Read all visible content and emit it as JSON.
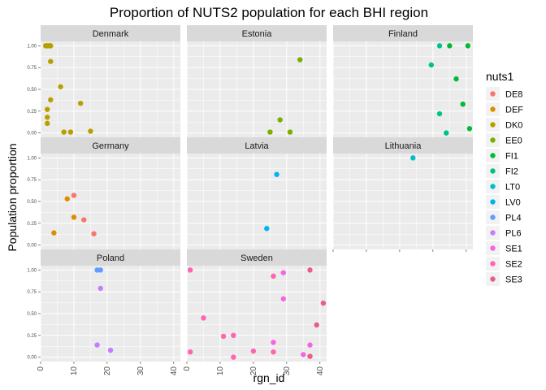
{
  "chart_data": {
    "type": "scatter",
    "title": "Proportion of NUTS2 population for each BHI region",
    "xlabel": "rgn_id",
    "ylabel": "Population proportion",
    "xlim": [
      0,
      42
    ],
    "ylim": [
      -0.05,
      1.05
    ],
    "x_ticks": [
      "0",
      "10",
      "20",
      "30",
      "40"
    ],
    "y_ticks": [
      "0.00",
      "0.25",
      "0.50",
      "0.75",
      "1.00"
    ],
    "grid": true,
    "legend": {
      "title": "nuts1",
      "placement": "right",
      "entries": [
        {
          "label": "DE8",
          "color": "#F8766D"
        },
        {
          "label": "DEF",
          "color": "#DE8C00"
        },
        {
          "label": "DK0",
          "color": "#B79F00"
        },
        {
          "label": "EE0",
          "color": "#7CAE00"
        },
        {
          "label": "FI1",
          "color": "#00BA38"
        },
        {
          "label": "FI2",
          "color": "#00C08B"
        },
        {
          "label": "LT0",
          "color": "#00BFC4"
        },
        {
          "label": "LV0",
          "color": "#00B4F0"
        },
        {
          "label": "PL4",
          "color": "#619CFF"
        },
        {
          "label": "PL6",
          "color": "#C77CFF"
        },
        {
          "label": "SE1",
          "color": "#F564E3"
        },
        {
          "label": "SE2",
          "color": "#FF64B0"
        },
        {
          "label": "SE3",
          "color": "#E85E85"
        }
      ]
    },
    "panels": [
      {
        "name": "Denmark",
        "points": [
          {
            "x": 1.5,
            "y": 1.0,
            "group": "DK0"
          },
          {
            "x": 2,
            "y": 1.0,
            "group": "DK0"
          },
          {
            "x": 2.5,
            "y": 1.0,
            "group": "DK0"
          },
          {
            "x": 3,
            "y": 1.0,
            "group": "DK0"
          },
          {
            "x": 3,
            "y": 0.82,
            "group": "DK0"
          },
          {
            "x": 6,
            "y": 0.53,
            "group": "DK0"
          },
          {
            "x": 3,
            "y": 0.38,
            "group": "DK0"
          },
          {
            "x": 12,
            "y": 0.34,
            "group": "DK0"
          },
          {
            "x": 2,
            "y": 0.27,
            "group": "DK0"
          },
          {
            "x": 2,
            "y": 0.18,
            "group": "DK0"
          },
          {
            "x": 2,
            "y": 0.11,
            "group": "DK0"
          },
          {
            "x": 7,
            "y": 0.01,
            "group": "DK0"
          },
          {
            "x": 9,
            "y": 0.01,
            "group": "DK0"
          },
          {
            "x": 15,
            "y": 0.02,
            "group": "DK0"
          }
        ]
      },
      {
        "name": "Estonia",
        "points": [
          {
            "x": 34,
            "y": 0.84,
            "group": "EE0"
          },
          {
            "x": 28,
            "y": 0.15,
            "group": "EE0"
          },
          {
            "x": 25,
            "y": 0.01,
            "group": "EE0"
          },
          {
            "x": 31,
            "y": 0.01,
            "group": "EE0"
          }
        ]
      },
      {
        "name": "Finland",
        "points": [
          {
            "x": 35,
            "y": 1.0,
            "group": "FI1"
          },
          {
            "x": 37,
            "y": 0.62,
            "group": "FI1"
          },
          {
            "x": 39,
            "y": 0.33,
            "group": "FI1"
          },
          {
            "x": 40.5,
            "y": 1.0,
            "group": "FI1"
          },
          {
            "x": 41,
            "y": 0.05,
            "group": "FI1"
          },
          {
            "x": 32,
            "y": 1.0,
            "group": "FI2"
          },
          {
            "x": 29.5,
            "y": 0.78,
            "group": "FI2"
          },
          {
            "x": 32,
            "y": 0.22,
            "group": "FI2"
          },
          {
            "x": 34,
            "y": 0.0,
            "group": "FI2"
          }
        ]
      },
      {
        "name": "Germany",
        "points": [
          {
            "x": 10,
            "y": 0.57,
            "group": "DE8"
          },
          {
            "x": 13,
            "y": 0.29,
            "group": "DE8"
          },
          {
            "x": 16,
            "y": 0.13,
            "group": "DE8"
          },
          {
            "x": 8,
            "y": 0.53,
            "group": "DEF"
          },
          {
            "x": 10,
            "y": 0.32,
            "group": "DEF"
          },
          {
            "x": 4,
            "y": 0.14,
            "group": "DEF"
          }
        ]
      },
      {
        "name": "Latvia",
        "points": [
          {
            "x": 27,
            "y": 0.81,
            "group": "LV0"
          },
          {
            "x": 24,
            "y": 0.19,
            "group": "LV0"
          }
        ]
      },
      {
        "name": "Lithuania",
        "points": [
          {
            "x": 24,
            "y": 1.0,
            "group": "LT0"
          }
        ]
      },
      {
        "name": "Poland",
        "points": [
          {
            "x": 17,
            "y": 1.0,
            "group": "PL4"
          },
          {
            "x": 18,
            "y": 1.0,
            "group": "PL4"
          },
          {
            "x": 18,
            "y": 0.79,
            "group": "PL6"
          },
          {
            "x": 17,
            "y": 0.14,
            "group": "PL6"
          },
          {
            "x": 21,
            "y": 0.08,
            "group": "PL6"
          }
        ]
      },
      {
        "name": "Sweden",
        "points": [
          {
            "x": 29,
            "y": 0.97,
            "group": "SE1"
          },
          {
            "x": 29,
            "y": 0.67,
            "group": "SE1"
          },
          {
            "x": 26,
            "y": 0.17,
            "group": "SE1"
          },
          {
            "x": 37,
            "y": 0.14,
            "group": "SE1"
          },
          {
            "x": 35,
            "y": 0.03,
            "group": "SE1"
          },
          {
            "x": 1,
            "y": 1.0,
            "group": "SE2"
          },
          {
            "x": 26,
            "y": 0.93,
            "group": "SE2"
          },
          {
            "x": 5,
            "y": 0.45,
            "group": "SE2"
          },
          {
            "x": 11,
            "y": 0.24,
            "group": "SE2"
          },
          {
            "x": 14,
            "y": 0.25,
            "group": "SE2"
          },
          {
            "x": 1,
            "y": 0.06,
            "group": "SE2"
          },
          {
            "x": 14,
            "y": 0.0,
            "group": "SE2"
          },
          {
            "x": 20,
            "y": 0.07,
            "group": "SE2"
          },
          {
            "x": 26,
            "y": 0.06,
            "group": "SE2"
          },
          {
            "x": 37,
            "y": 1.0,
            "group": "SE3"
          },
          {
            "x": 39,
            "y": 0.37,
            "group": "SE3"
          },
          {
            "x": 41,
            "y": 0.62,
            "group": "SE3"
          },
          {
            "x": 37,
            "y": 0.01,
            "group": "SE3"
          }
        ]
      }
    ]
  }
}
